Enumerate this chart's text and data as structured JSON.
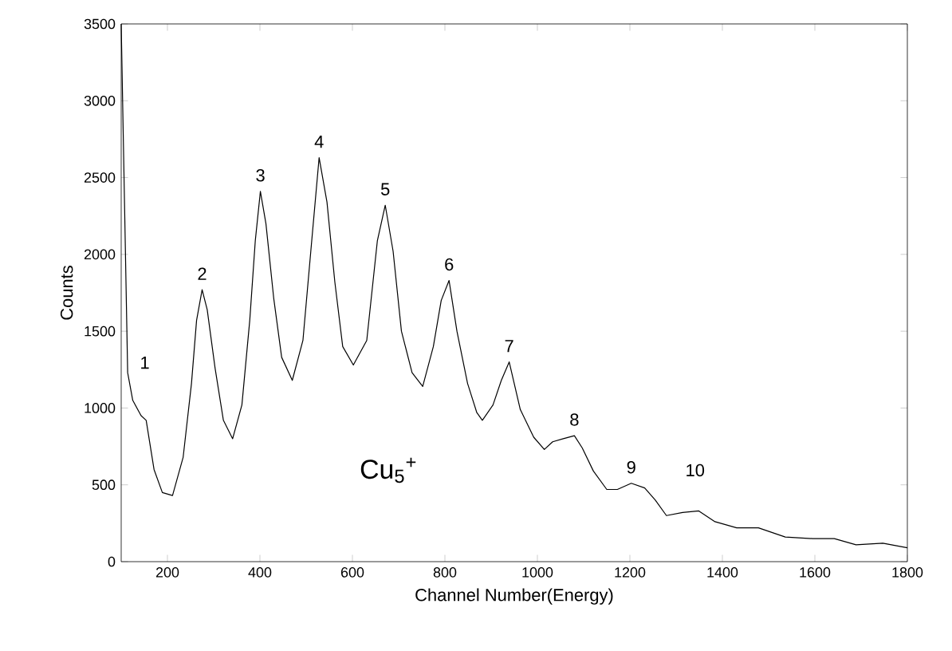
{
  "chart_data": {
    "type": "line",
    "xlabel": "Channel Number(Energy)",
    "ylabel": "Counts",
    "x": [
      100,
      114,
      125,
      143,
      154,
      171,
      189,
      211,
      234,
      252,
      263,
      275,
      286,
      303,
      321,
      341,
      361,
      378,
      390,
      401,
      413,
      430,
      447,
      470,
      493,
      510,
      528,
      545,
      562,
      579,
      602,
      631,
      654,
      671,
      688,
      706,
      729,
      752,
      775,
      792,
      809,
      826,
      849,
      869,
      881,
      904,
      922,
      939,
      963,
      992,
      1015,
      1033,
      1056,
      1080,
      1097,
      1121,
      1150,
      1173,
      1203,
      1232,
      1255,
      1279,
      1314,
      1349,
      1384,
      1431,
      1478,
      1536,
      1595,
      1642,
      1689,
      1747,
      1800
    ],
    "series": [
      {
        "color": "#000000",
        "values": [
          3500,
          1230,
          1050,
          950,
          920,
          600,
          450,
          430,
          680,
          1160,
          1570,
          1770,
          1640,
          1260,
          920,
          800,
          1020,
          1570,
          2090,
          2410,
          2200,
          1710,
          1330,
          1180,
          1440,
          2020,
          2630,
          2340,
          1820,
          1400,
          1280,
          1440,
          2090,
          2320,
          2020,
          1500,
          1230,
          1140,
          1400,
          1700,
          1830,
          1500,
          1160,
          970,
          920,
          1020,
          1180,
          1300,
          990,
          810,
          730,
          780,
          800,
          820,
          740,
          590,
          470,
          470,
          510,
          480,
          400,
          300,
          320,
          330,
          260,
          220,
          220,
          160,
          150,
          150,
          110,
          120,
          90
        ]
      }
    ],
    "xlim": [
      100,
      1800
    ],
    "ylim": [
      0,
      3500
    ],
    "xticks": [
      200,
      400,
      600,
      800,
      1000,
      1200,
      1400,
      1600,
      1800
    ],
    "yticks": [
      0,
      500,
      1000,
      1500,
      2000,
      2500,
      3000,
      3500
    ],
    "grid": false,
    "marker": "none",
    "line_style": "solid",
    "annotations": [
      "1",
      {
        "text": "2",
        "x": 275,
        "y": 1770
      },
      {
        "text": "3",
        "x": 401,
        "y": 2410
      },
      {
        "text": "4",
        "x": 528,
        "y": 2630
      },
      {
        "text": "5",
        "x": 671,
        "y": 2320
      },
      {
        "text": "6",
        "x": 809,
        "y": 1830
      },
      {
        "text": "7",
        "x": 939,
        "y": 1300
      },
      {
        "text": "8",
        "x": 1080,
        "y": 820
      },
      {
        "text": "9",
        "x": 1203,
        "y": 510
      },
      "10",
      "Cu$_{5}$$^{+}$"
    ]
  }
}
